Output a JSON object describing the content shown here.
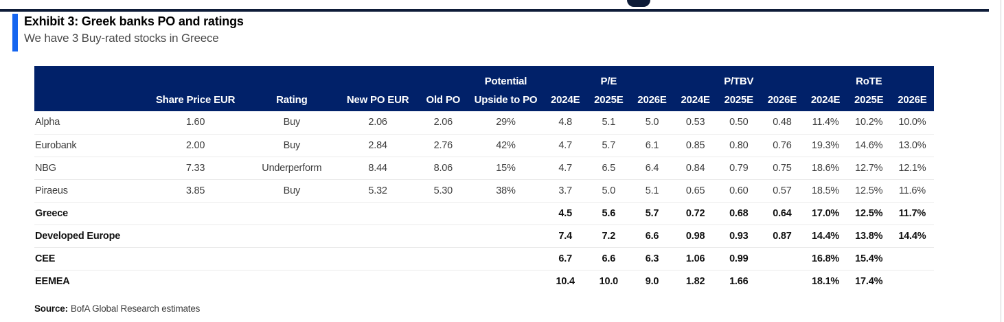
{
  "header": {
    "exhibit_title": "Exhibit 3: Greek banks PO and ratings",
    "subtitle": "We have 3 Buy-rated stocks in Greece"
  },
  "colors": {
    "navy_header": "#012169",
    "top_rule": "#0e1c38",
    "accent_blue": "#1565f0",
    "row_border": "#ebebeb",
    "body_text": "#3d3d3d",
    "subtitle_gray": "#4a4a4a"
  },
  "table": {
    "group_headers": [
      {
        "label": "",
        "span": 5
      },
      {
        "label": "Potential",
        "span": 1
      },
      {
        "label": "P/E",
        "span": 3
      },
      {
        "label": "P/TBV",
        "span": 3
      },
      {
        "label": "RoTE",
        "span": 3
      }
    ],
    "column_headers": [
      "",
      "Share Price EUR",
      "Rating",
      "New PO EUR",
      "Old PO",
      "Upside to PO",
      "2024E",
      "2025E",
      "2026E",
      "2024E",
      "2025E",
      "2026E",
      "2024E",
      "2025E",
      "2026E"
    ],
    "rows": [
      {
        "name": "Alpha",
        "bold": false,
        "values": [
          "1.60",
          "Buy",
          "2.06",
          "2.06",
          "29%",
          "4.8",
          "5.1",
          "5.0",
          "0.53",
          "0.50",
          "0.48",
          "11.4%",
          "10.2%",
          "10.0%"
        ]
      },
      {
        "name": "Eurobank",
        "bold": false,
        "values": [
          "2.00",
          "Buy",
          "2.84",
          "2.76",
          "42%",
          "4.7",
          "5.7",
          "6.1",
          "0.85",
          "0.80",
          "0.76",
          "19.3%",
          "14.6%",
          "13.0%"
        ]
      },
      {
        "name": "NBG",
        "bold": false,
        "values": [
          "7.33",
          "Underperform",
          "8.44",
          "8.06",
          "15%",
          "4.7",
          "6.5",
          "6.4",
          "0.84",
          "0.79",
          "0.75",
          "18.6%",
          "12.7%",
          "12.1%"
        ]
      },
      {
        "name": "Piraeus",
        "bold": false,
        "values": [
          "3.85",
          "Buy",
          "5.32",
          "5.30",
          "38%",
          "3.7",
          "5.0",
          "5.1",
          "0.65",
          "0.60",
          "0.57",
          "18.5%",
          "12.5%",
          "11.6%"
        ]
      },
      {
        "name": "Greece",
        "bold": true,
        "values": [
          "",
          "",
          "",
          "",
          "",
          "4.5",
          "5.6",
          "5.7",
          "0.72",
          "0.68",
          "0.64",
          "17.0%",
          "12.5%",
          "11.7%"
        ]
      },
      {
        "name": "Developed Europe",
        "bold": true,
        "values": [
          "",
          "",
          "",
          "",
          "",
          "7.4",
          "7.2",
          "6.6",
          "0.98",
          "0.93",
          "0.87",
          "14.4%",
          "13.8%",
          "14.4%"
        ]
      },
      {
        "name": "CEE",
        "bold": true,
        "values": [
          "",
          "",
          "",
          "",
          "",
          "6.7",
          "6.6",
          "6.3",
          "1.06",
          "0.99",
          "",
          "16.8%",
          "15.4%",
          ""
        ]
      },
      {
        "name": "EEMEA",
        "bold": true,
        "values": [
          "",
          "",
          "",
          "",
          "",
          "10.4",
          "10.0",
          "9.0",
          "1.82",
          "1.66",
          "",
          "18.1%",
          "17.4%",
          ""
        ]
      }
    ]
  },
  "footer": {
    "source_label": "Source:",
    "source_text": "BofA Global Research estimates"
  }
}
